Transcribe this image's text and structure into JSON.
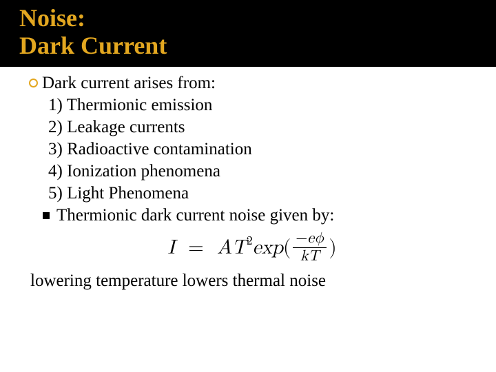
{
  "title": {
    "line1": "Noise:",
    "line2": "Dark Current",
    "color": "#e3a720",
    "bg": "#000000",
    "fontsize": 36
  },
  "body": {
    "fontsize": 25,
    "color": "#000000",
    "lead": "Dark current arises from:",
    "causes": [
      "1) Thermionic emission",
      "2) Leakage currents",
      "3) Radioactive contamination",
      "4) Ionization phenomena",
      "5) Light Phenomena"
    ],
    "second_bullet": "Thermionic dark current noise given by:",
    "formula": {
      "lhs": "I",
      "eq": "=",
      "A": "A",
      "T": "T",
      "exp_power": "2",
      "expword": "exp",
      "lparen": "(",
      "num_minus": "−",
      "num_e": "e",
      "num_phi": "ϕ",
      "den_k": "k",
      "den_T": "T",
      "rparen": ")"
    },
    "closing": "lowering temperature lowers thermal noise"
  },
  "bullet_style": {
    "circle_border_color": "#e3a720",
    "square_color": "#000000"
  }
}
